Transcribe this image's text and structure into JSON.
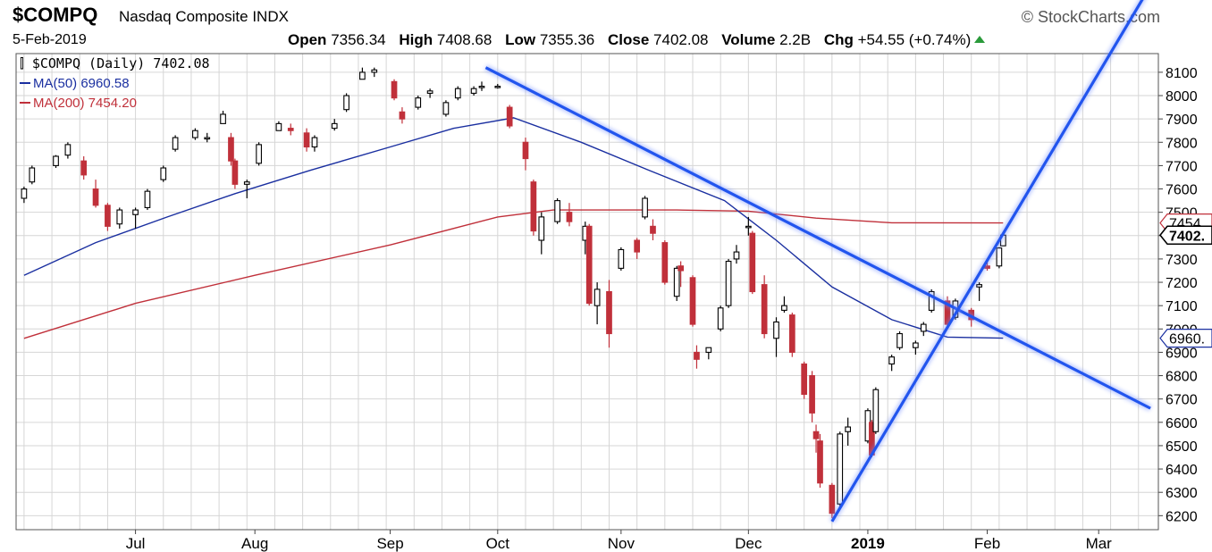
{
  "header": {
    "symbol": "$COMPQ",
    "name": "Nasdaq Composite",
    "exchange": "INDX",
    "brand": "StockCharts.com",
    "date": "5-Feb-2019",
    "open_label": "Open",
    "open": "7356.34",
    "high_label": "High",
    "high": "7408.68",
    "low_label": "Low",
    "low": "7355.36",
    "close_label": "Close",
    "close": "7402.08",
    "volume_label": "Volume",
    "volume": "2.2B",
    "chg_label": "Chg",
    "chg": "+54.55 (+0.74%)"
  },
  "legend": {
    "main": "$COMPQ (Daily) 7402.08",
    "ma50": "MA(50) 6960.58",
    "ma200": "MA(200) 7454.20"
  },
  "colors": {
    "up": "#000000",
    "down": "#c0303a",
    "ma50": "#1a2fa0",
    "ma200": "#c0303a",
    "trendline": "#2255ee",
    "grid": "#d6d6d6",
    "tag_bg": "#ffffff"
  },
  "chart_data": {
    "type": "candlestick",
    "y_ticks": [
      6200,
      6300,
      6400,
      6500,
      6600,
      6700,
      6800,
      6900,
      7000,
      7100,
      7200,
      7300,
      7400,
      7500,
      7600,
      7700,
      7800,
      7900,
      8000,
      8100
    ],
    "ylim": [
      6140,
      8180
    ],
    "x_labels": [
      {
        "label": "Jul",
        "date": "2018-07-02",
        "bold": false
      },
      {
        "label": "Aug",
        "date": "2018-08-01",
        "bold": false
      },
      {
        "label": "Sep",
        "date": "2018-09-04",
        "bold": false
      },
      {
        "label": "Oct",
        "date": "2018-10-01",
        "bold": false
      },
      {
        "label": "Nov",
        "date": "2018-11-01",
        "bold": false
      },
      {
        "label": "Dec",
        "date": "2018-12-03",
        "bold": false
      },
      {
        "label": "2019",
        "date": "2019-01-02",
        "bold": true
      },
      {
        "label": "Feb",
        "date": "2019-02-01",
        "bold": false
      },
      {
        "label": "Mar",
        "date": "2019-03-01",
        "bold": false
      }
    ],
    "price_tags": [
      {
        "label": "7454.",
        "value": 7454.2,
        "style": "ma200"
      },
      {
        "label": "7402.",
        "value": 7402.08,
        "style": "last"
      },
      {
        "label": "6960.",
        "value": 6960.58,
        "style": "ma50"
      }
    ],
    "series_ma50": [
      [
        "2018-06-04",
        7230
      ],
      [
        "2018-06-22",
        7370
      ],
      [
        "2018-07-10",
        7480
      ],
      [
        "2018-07-27",
        7580
      ],
      [
        "2018-08-15",
        7680
      ],
      [
        "2018-09-04",
        7780
      ],
      [
        "2018-09-20",
        7860
      ],
      [
        "2018-10-05",
        7905
      ],
      [
        "2018-10-22",
        7800
      ],
      [
        "2018-11-08",
        7680
      ],
      [
        "2018-11-27",
        7550
      ],
      [
        "2018-12-10",
        7380
      ],
      [
        "2018-12-24",
        7180
      ],
      [
        "2019-01-08",
        7040
      ],
      [
        "2019-01-22",
        6965
      ],
      [
        "2019-02-05",
        6960.58
      ]
    ],
    "series_ma200": [
      [
        "2018-06-04",
        6960
      ],
      [
        "2018-07-02",
        7110
      ],
      [
        "2018-08-01",
        7230
      ],
      [
        "2018-09-04",
        7360
      ],
      [
        "2018-10-01",
        7480
      ],
      [
        "2018-10-15",
        7510
      ],
      [
        "2018-11-15",
        7510
      ],
      [
        "2018-12-03",
        7505
      ],
      [
        "2018-12-20",
        7475
      ],
      [
        "2019-01-08",
        7455
      ],
      [
        "2019-02-05",
        7454.2
      ]
    ],
    "trendlines": [
      {
        "from": [
          "2018-09-28",
          8120
        ],
        "to": [
          "2019-03-14",
          6660
        ]
      },
      {
        "from": [
          "2018-12-24",
          6175
        ],
        "to": [
          "2019-03-14",
          8470
        ]
      }
    ],
    "candles": [
      [
        "2018-06-04",
        7560,
        7610,
        7540,
        7600
      ],
      [
        "2018-06-06",
        7630,
        7700,
        7620,
        7690
      ],
      [
        "2018-06-12",
        7700,
        7745,
        7690,
        7740
      ],
      [
        "2018-06-15",
        7745,
        7800,
        7730,
        7790
      ],
      [
        "2018-06-19",
        7720,
        7740,
        7640,
        7660
      ],
      [
        "2018-06-22",
        7600,
        7640,
        7520,
        7530
      ],
      [
        "2018-06-25",
        7530,
        7540,
        7420,
        7440
      ],
      [
        "2018-06-28",
        7450,
        7520,
        7430,
        7510
      ],
      [
        "2018-07-02",
        7490,
        7520,
        7430,
        7510
      ],
      [
        "2018-07-05",
        7520,
        7600,
        7510,
        7590
      ],
      [
        "2018-07-09",
        7640,
        7700,
        7630,
        7690
      ],
      [
        "2018-07-12",
        7770,
        7830,
        7760,
        7820
      ],
      [
        "2018-07-17",
        7820,
        7860,
        7810,
        7850
      ],
      [
        "2018-07-20",
        7820,
        7840,
        7800,
        7820
      ],
      [
        "2018-07-24",
        7880,
        7935,
        7880,
        7920
      ],
      [
        "2018-07-26",
        7820,
        7840,
        7700,
        7720
      ],
      [
        "2018-07-27",
        7720,
        7730,
        7600,
        7620
      ],
      [
        "2018-07-30",
        7620,
        7640,
        7560,
        7630
      ],
      [
        "2018-08-02",
        7710,
        7800,
        7700,
        7790
      ],
      [
        "2018-08-07",
        7850,
        7890,
        7850,
        7880
      ],
      [
        "2018-08-10",
        7860,
        7880,
        7830,
        7850
      ],
      [
        "2018-08-14",
        7840,
        7860,
        7760,
        7780
      ],
      [
        "2018-08-16",
        7780,
        7830,
        7760,
        7820
      ],
      [
        "2018-08-21",
        7860,
        7900,
        7850,
        7880
      ],
      [
        "2018-08-24",
        7940,
        8010,
        7930,
        8000
      ],
      [
        "2018-08-28",
        8070,
        8120,
        8070,
        8100
      ],
      [
        "2018-08-31",
        8100,
        8120,
        8080,
        8110
      ],
      [
        "2018-09-05",
        8060,
        8070,
        7980,
        7990
      ],
      [
        "2018-09-07",
        7930,
        7950,
        7880,
        7900
      ],
      [
        "2018-09-11",
        7950,
        8000,
        7940,
        7990
      ],
      [
        "2018-09-14",
        8010,
        8030,
        7990,
        8020
      ],
      [
        "2018-09-18",
        7920,
        7980,
        7910,
        7970
      ],
      [
        "2018-09-21",
        7990,
        8040,
        7980,
        8030
      ],
      [
        "2018-09-25",
        8010,
        8040,
        8000,
        8030
      ],
      [
        "2018-09-27",
        8040,
        8060,
        8020,
        8040
      ],
      [
        "2018-10-01",
        8040,
        8050,
        8030,
        8040
      ],
      [
        "2018-10-04",
        7950,
        7960,
        7860,
        7870
      ],
      [
        "2018-10-08",
        7800,
        7820,
        7680,
        7730
      ],
      [
        "2018-10-10",
        7630,
        7640,
        7400,
        7420
      ],
      [
        "2018-10-12",
        7380,
        7500,
        7320,
        7480
      ],
      [
        "2018-10-16",
        7460,
        7560,
        7450,
        7550
      ],
      [
        "2018-10-19",
        7500,
        7540,
        7440,
        7460
      ],
      [
        "2018-10-23",
        7380,
        7460,
        7320,
        7440
      ],
      [
        "2018-10-24",
        7440,
        7450,
        7100,
        7110
      ],
      [
        "2018-10-26",
        7100,
        7200,
        7020,
        7170
      ],
      [
        "2018-10-29",
        7160,
        7210,
        6920,
        6980
      ],
      [
        "2018-11-01",
        7260,
        7350,
        7250,
        7340
      ],
      [
        "2018-11-05",
        7380,
        7390,
        7300,
        7330
      ],
      [
        "2018-11-07",
        7480,
        7570,
        7470,
        7560
      ],
      [
        "2018-11-09",
        7440,
        7470,
        7380,
        7410
      ],
      [
        "2018-11-12",
        7370,
        7380,
        7190,
        7200
      ],
      [
        "2018-11-15",
        7140,
        7270,
        7120,
        7260
      ],
      [
        "2018-11-16",
        7270,
        7290,
        7180,
        7250
      ],
      [
        "2018-11-19",
        7220,
        7230,
        7010,
        7020
      ],
      [
        "2018-11-20",
        6900,
        6930,
        6830,
        6870
      ],
      [
        "2018-11-23",
        6900,
        6920,
        6870,
        6920
      ],
      [
        "2018-11-26",
        7000,
        7100,
        6990,
        7090
      ],
      [
        "2018-11-28",
        7100,
        7300,
        7090,
        7290
      ],
      [
        "2018-11-30",
        7300,
        7360,
        7280,
        7330
      ],
      [
        "2018-12-03",
        7440,
        7480,
        7400,
        7440
      ],
      [
        "2018-12-04",
        7410,
        7420,
        7150,
        7160
      ],
      [
        "2018-12-07",
        7190,
        7230,
        6960,
        6980
      ],
      [
        "2018-12-10",
        6960,
        7050,
        6880,
        7030
      ],
      [
        "2018-12-12",
        7080,
        7140,
        7070,
        7100
      ],
      [
        "2018-12-14",
        7060,
        7070,
        6880,
        6900
      ],
      [
        "2018-12-17",
        6850,
        6860,
        6700,
        6720
      ],
      [
        "2018-12-19",
        6800,
        6820,
        6600,
        6640
      ],
      [
        "2018-12-20",
        6560,
        6590,
        6470,
        6530
      ],
      [
        "2018-12-21",
        6520,
        6550,
        6320,
        6340
      ],
      [
        "2018-12-24",
        6330,
        6340,
        6190,
        6210
      ],
      [
        "2018-12-26",
        6250,
        6560,
        6240,
        6550
      ],
      [
        "2018-12-28",
        6560,
        6620,
        6500,
        6580
      ],
      [
        "2019-01-02",
        6520,
        6660,
        6510,
        6650
      ],
      [
        "2019-01-03",
        6600,
        6610,
        6450,
        6460
      ],
      [
        "2019-01-04",
        6560,
        6750,
        6550,
        6740
      ],
      [
        "2019-01-08",
        6850,
        6890,
        6820,
        6880
      ],
      [
        "2019-01-10",
        6920,
        6990,
        6910,
        6980
      ],
      [
        "2019-01-14",
        6920,
        6950,
        6890,
        6940
      ],
      [
        "2019-01-16",
        6990,
        7030,
        6970,
        7020
      ],
      [
        "2019-01-18",
        7080,
        7170,
        7070,
        7160
      ],
      [
        "2019-01-22",
        7120,
        7140,
        7010,
        7020
      ],
      [
        "2019-01-24",
        7050,
        7130,
        7040,
        7120
      ],
      [
        "2019-01-28",
        7080,
        7090,
        7010,
        7040
      ],
      [
        "2019-01-30",
        7180,
        7200,
        7120,
        7190
      ],
      [
        "2019-02-01",
        7270,
        7290,
        7250,
        7260
      ],
      [
        "2019-02-04",
        7270,
        7350,
        7260,
        7347
      ],
      [
        "2019-02-05",
        7356.34,
        7408.68,
        7355.36,
        7402.08
      ]
    ]
  }
}
